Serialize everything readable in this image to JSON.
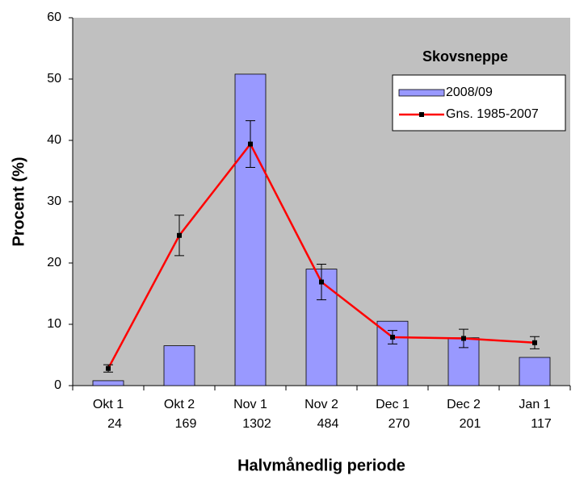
{
  "chart_data": {
    "type": "bar_line",
    "title": "Skovsneppe",
    "x_label": "Halvmånedlig periode",
    "y_label": "Procent (%)",
    "categories": [
      "Okt 1",
      "Okt 2",
      "Nov 1",
      "Nov 2",
      "Dec 1",
      "Dec 2",
      "Jan 1"
    ],
    "category_counts": [
      24,
      169,
      1302,
      484,
      270,
      201,
      117
    ],
    "series": [
      {
        "name": "2008/09",
        "type": "bar",
        "color": "#9999ff",
        "values": [
          0.8,
          6.5,
          50.8,
          19.0,
          10.5,
          7.8,
          4.6
        ]
      },
      {
        "name": "Gns. 1985-2007",
        "type": "line",
        "color": "#ff0000",
        "values": [
          2.8,
          24.5,
          39.4,
          16.9,
          7.9,
          7.7,
          7.0
        ],
        "errors": [
          0.6,
          3.3,
          3.8,
          2.9,
          1.1,
          1.5,
          1.0
        ]
      }
    ],
    "ylim": [
      0,
      60
    ],
    "yticks": [
      0,
      10,
      20,
      30,
      40,
      50,
      60
    ],
    "plot_background": "#c0c0c0"
  }
}
